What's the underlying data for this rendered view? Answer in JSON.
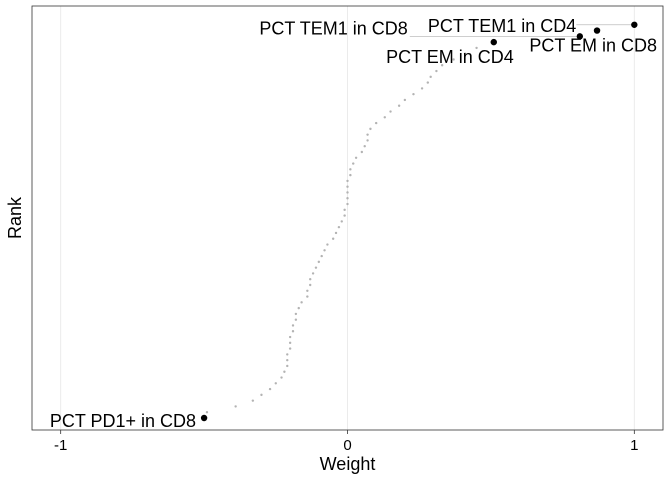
{
  "chart_data": {
    "type": "scatter",
    "title": "",
    "xlabel": "Weight",
    "ylabel": "Rank",
    "xlim": [
      -1.1,
      1.1
    ],
    "x_ticks": [
      -1,
      0,
      1
    ],
    "x_tick_labels": [
      "-1",
      "0",
      "1"
    ],
    "y_ticks_shown": false,
    "rank_range": [
      1,
      70
    ],
    "grid": "vertical major lines",
    "legend": "none",
    "background_points": [
      {
        "rank": 2,
        "weight": -0.49
      },
      {
        "rank": 3,
        "weight": -0.39
      },
      {
        "rank": 4,
        "weight": -0.33
      },
      {
        "rank": 5,
        "weight": -0.3
      },
      {
        "rank": 6,
        "weight": -0.27
      },
      {
        "rank": 7,
        "weight": -0.25
      },
      {
        "rank": 8,
        "weight": -0.23
      },
      {
        "rank": 9,
        "weight": -0.22
      },
      {
        "rank": 10,
        "weight": -0.21
      },
      {
        "rank": 11,
        "weight": -0.21
      },
      {
        "rank": 12,
        "weight": -0.21
      },
      {
        "rank": 13,
        "weight": -0.2
      },
      {
        "rank": 14,
        "weight": -0.2
      },
      {
        "rank": 15,
        "weight": -0.2
      },
      {
        "rank": 16,
        "weight": -0.19
      },
      {
        "rank": 17,
        "weight": -0.19
      },
      {
        "rank": 18,
        "weight": -0.18
      },
      {
        "rank": 19,
        "weight": -0.18
      },
      {
        "rank": 20,
        "weight": -0.17
      },
      {
        "rank": 21,
        "weight": -0.16
      },
      {
        "rank": 22,
        "weight": -0.14
      },
      {
        "rank": 23,
        "weight": -0.14
      },
      {
        "rank": 24,
        "weight": -0.13
      },
      {
        "rank": 25,
        "weight": -0.13
      },
      {
        "rank": 26,
        "weight": -0.12
      },
      {
        "rank": 27,
        "weight": -0.11
      },
      {
        "rank": 28,
        "weight": -0.1
      },
      {
        "rank": 29,
        "weight": -0.09
      },
      {
        "rank": 30,
        "weight": -0.08
      },
      {
        "rank": 31,
        "weight": -0.07
      },
      {
        "rank": 32,
        "weight": -0.05
      },
      {
        "rank": 33,
        "weight": -0.04
      },
      {
        "rank": 34,
        "weight": -0.03
      },
      {
        "rank": 35,
        "weight": -0.02
      },
      {
        "rank": 36,
        "weight": -0.01
      },
      {
        "rank": 37,
        "weight": -0.01
      },
      {
        "rank": 38,
        "weight": 0.0
      },
      {
        "rank": 39,
        "weight": 0.0
      },
      {
        "rank": 40,
        "weight": 0.0
      },
      {
        "rank": 41,
        "weight": 0.0
      },
      {
        "rank": 42,
        "weight": 0.0
      },
      {
        "rank": 43,
        "weight": 0.01
      },
      {
        "rank": 44,
        "weight": 0.01
      },
      {
        "rank": 45,
        "weight": 0.02
      },
      {
        "rank": 46,
        "weight": 0.03
      },
      {
        "rank": 47,
        "weight": 0.05
      },
      {
        "rank": 48,
        "weight": 0.06
      },
      {
        "rank": 49,
        "weight": 0.07
      },
      {
        "rank": 50,
        "weight": 0.07
      },
      {
        "rank": 51,
        "weight": 0.08
      },
      {
        "rank": 52,
        "weight": 0.1
      },
      {
        "rank": 53,
        "weight": 0.13
      },
      {
        "rank": 54,
        "weight": 0.15
      },
      {
        "rank": 55,
        "weight": 0.18
      },
      {
        "rank": 56,
        "weight": 0.2
      },
      {
        "rank": 57,
        "weight": 0.23
      },
      {
        "rank": 58,
        "weight": 0.26
      },
      {
        "rank": 59,
        "weight": 0.28
      },
      {
        "rank": 60,
        "weight": 0.29
      },
      {
        "rank": 61,
        "weight": 0.31
      },
      {
        "rank": 62,
        "weight": 0.33
      },
      {
        "rank": 63,
        "weight": 0.37
      },
      {
        "rank": 64,
        "weight": 0.41
      },
      {
        "rank": 65,
        "weight": 0.45
      }
    ],
    "highlighted_points": [
      {
        "label": "PCT PD1+ in CD8",
        "rank": 1,
        "weight": -0.5
      },
      {
        "label": "PCT EM in CD4",
        "rank": 66,
        "weight": 0.51
      },
      {
        "label": "PCT TEM1 in CD8",
        "rank": 67,
        "weight": 0.81
      },
      {
        "label": "PCT EM in CD8",
        "rank": 68,
        "weight": 0.87
      },
      {
        "label": "PCT TEM1 in CD4",
        "rank": 69,
        "weight": 1.0
      }
    ],
    "colors": {
      "highlight": "#000000",
      "background_points": "#b3b3b3",
      "grid": "#ebebeb",
      "connector": "#bdbdbd"
    }
  }
}
